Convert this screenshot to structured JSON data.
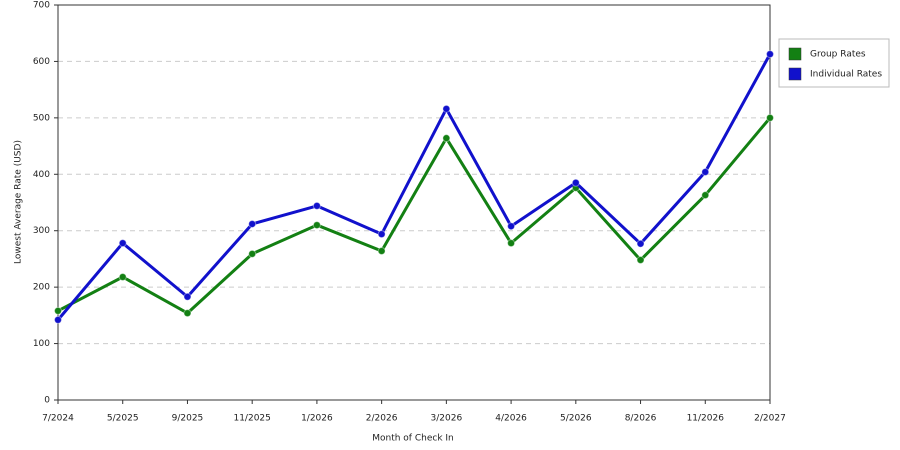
{
  "chart_data": {
    "type": "line",
    "x_label": "Month of Check In",
    "y_label": "Lowest Average Rate (USD)",
    "categories": [
      "7/2024",
      "5/2025",
      "9/2025",
      "11/2025",
      "1/2026",
      "2/2026",
      "3/2026",
      "4/2026",
      "5/2026",
      "8/2026",
      "11/2026",
      "2/2027"
    ],
    "series": [
      {
        "name": "Group Rates",
        "color": "#138013",
        "values": [
          158,
          218,
          154,
          259,
          310,
          264,
          464,
          278,
          376,
          248,
          363,
          500
        ]
      },
      {
        "name": "Individual Rates",
        "color": "#1111cc",
        "values": [
          142,
          278,
          183,
          312,
          344,
          294,
          516,
          308,
          385,
          277,
          404,
          613
        ]
      }
    ],
    "ylim": [
      0,
      700
    ],
    "yticks": [
      0,
      100,
      200,
      300,
      400,
      500,
      600,
      700
    ],
    "grid": true
  }
}
